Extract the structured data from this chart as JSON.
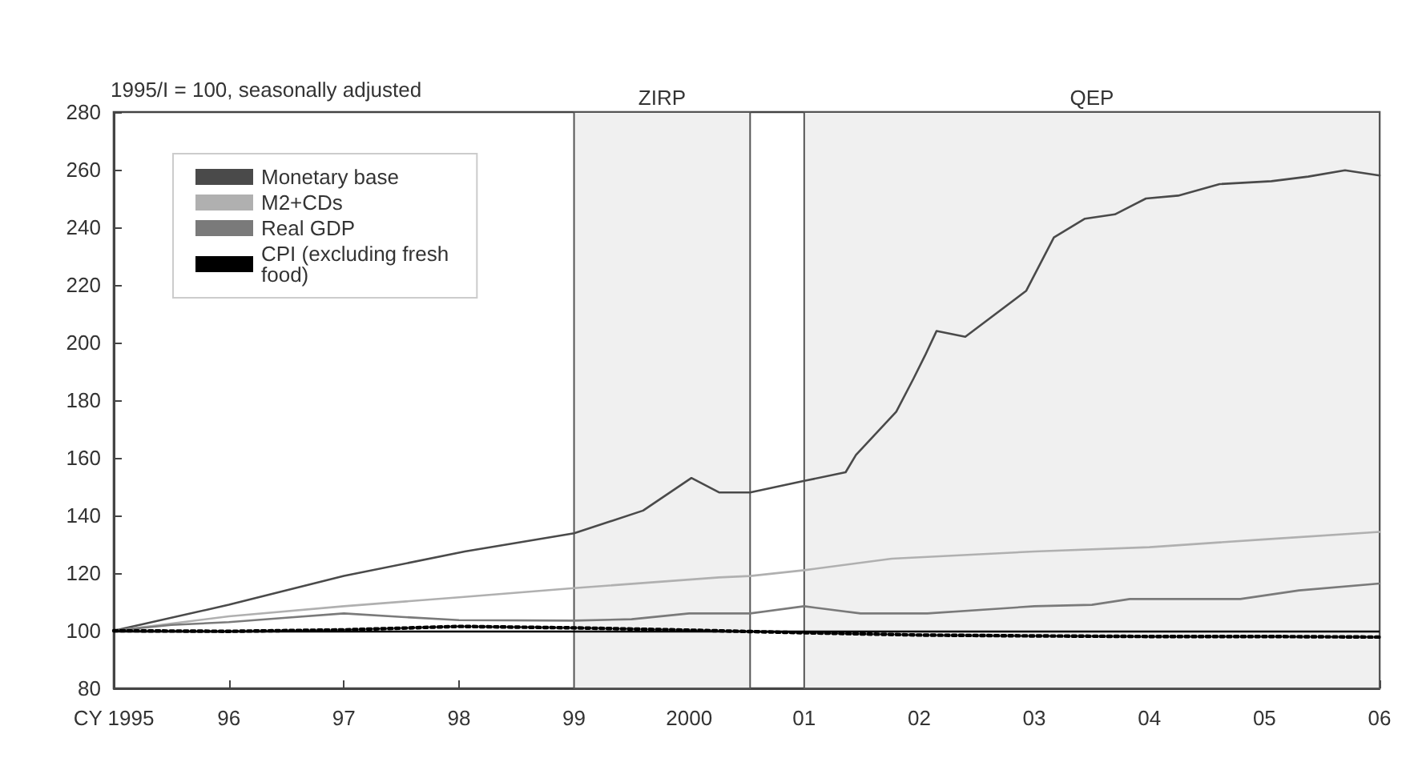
{
  "chart_data": {
    "type": "line",
    "ylabel": "1995/I = 100, seasonally adjusted",
    "xlim": [
      1995,
      2006
    ],
    "xticks": [
      {
        "value": 1995,
        "label": "CY 1995"
      },
      {
        "value": 1996,
        "label": "96"
      },
      {
        "value": 1997,
        "label": "97"
      },
      {
        "value": 1998,
        "label": "98"
      },
      {
        "value": 1999,
        "label": "99"
      },
      {
        "value": 2000,
        "label": "2000"
      },
      {
        "value": 2001,
        "label": "01"
      },
      {
        "value": 2002,
        "label": "02"
      },
      {
        "value": 2003,
        "label": "03"
      },
      {
        "value": 2004,
        "label": "04"
      },
      {
        "value": 2005,
        "label": "05"
      },
      {
        "value": 2006,
        "label": "06"
      }
    ],
    "ylim": [
      80,
      280
    ],
    "yticks": [
      80,
      100,
      120,
      140,
      160,
      180,
      200,
      220,
      240,
      260,
      280
    ],
    "grid": false,
    "legend": "top left",
    "marker": "none",
    "series": [
      {
        "name": "Monetary base",
        "color": "#4a4a4a",
        "x": [
          1995,
          1996,
          1997,
          1998.05,
          1999,
          1999.6,
          2000.02,
          2000.26,
          2000.53,
          2001,
          2001.36,
          2001.45,
          2001.8,
          2001.95,
          2002.05,
          2002.15,
          2002.4,
          2002.93,
          2003.17,
          2003.44,
          2003.7,
          2003.97,
          2004.25,
          2004.61,
          2005.06,
          2005.38,
          2005.7,
          2006
        ],
        "values": [
          100,
          109,
          119,
          127.5,
          133.8,
          141.7,
          153,
          148,
          148,
          152,
          155,
          161,
          176,
          187.5,
          195.5,
          204,
          202,
          218,
          236.5,
          243,
          244.5,
          250,
          251,
          255,
          256,
          257.6,
          259.8,
          258
        ]
      },
      {
        "name": "M2+CDs",
        "color": "#b0b0b0",
        "x": [
          1995,
          1996,
          1997,
          1998,
          1999,
          2000.26,
          2000.53,
          2001,
          2001.76,
          2003,
          2004,
          2005,
          2006
        ],
        "values": [
          100,
          105,
          108.5,
          111.6,
          114.8,
          118.5,
          119,
          121,
          125,
          127.5,
          129,
          131.7,
          134.3
        ]
      },
      {
        "name": "Real GDP",
        "color": "#7a7a7a",
        "x": [
          1995,
          1995.5,
          1996,
          1996.5,
          1997,
          1997.5,
          1998,
          1999,
          1999.5,
          2000,
          2000.53,
          2001,
          2001.49,
          2002.07,
          2003,
          2003.5,
          2003.83,
          2004.79,
          2005.3,
          2006
        ],
        "values": [
          100,
          102,
          103,
          104.5,
          106,
          104.8,
          103.7,
          103.5,
          104,
          106,
          106,
          108.5,
          106,
          106,
          108.5,
          109,
          111,
          111,
          114,
          116.4
        ]
      },
      {
        "name": "CPI (excluding fresh food)",
        "color": "#000000",
        "line_style": "dotted",
        "x": [
          1995,
          1996,
          1997,
          1998,
          1999,
          2000,
          2001,
          2002,
          2003,
          2004,
          2005,
          2006
        ],
        "values": [
          100,
          99.8,
          100.3,
          101.5,
          101,
          100.2,
          99.3,
          98.5,
          98.2,
          98,
          98,
          97.8
        ]
      }
    ],
    "ref_lines": [
      {
        "axis": "y",
        "value": 100,
        "color": "#000000"
      }
    ],
    "bands": [
      {
        "axis": "x",
        "from": 1999,
        "to": 2000.53,
        "label": "ZIRP",
        "color": "#f0f0f0"
      },
      {
        "axis": "x",
        "from": 2001,
        "to": 2006,
        "label": "QEP",
        "color": "#f0f0f0"
      }
    ]
  }
}
